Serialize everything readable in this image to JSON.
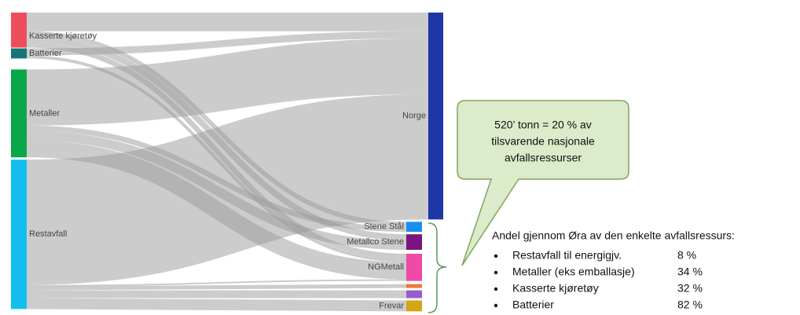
{
  "chart_data": {
    "type": "sankey",
    "nodes": [
      {
        "label": "Kasserte kjøretøy",
        "color": "#ee4d5e"
      },
      {
        "label": "Batterier",
        "color": "#13757a"
      },
      {
        "label": "Metaller",
        "color": "#0aa64a"
      },
      {
        "label": "Restavfall",
        "color": "#12bfec"
      },
      {
        "label": "Norge",
        "color": "#1f36a6"
      },
      {
        "label": "Stene Stål",
        "color": "#1a8fef"
      },
      {
        "label": "Metallco Stene",
        "color": "#7a1480"
      },
      {
        "label": "NGMetall",
        "color": "#ef4aa6"
      },
      {
        "label": null,
        "color": "#ef7a3a"
      },
      {
        "label": null,
        "color": "#9a5cc8"
      },
      {
        "label": "Frevar",
        "color": "#d4a514"
      }
    ],
    "links": [
      {
        "source": 0,
        "target": 4,
        "value": 24
      },
      {
        "source": 0,
        "target": 5,
        "value": 6
      },
      {
        "source": 0,
        "target": 6,
        "value": 8
      },
      {
        "source": 0,
        "target": 7,
        "value": 7
      },
      {
        "source": 1,
        "target": 4,
        "value": 9
      },
      {
        "source": 1,
        "target": 7,
        "value": 4
      },
      {
        "source": 2,
        "target": 4,
        "value": 72
      },
      {
        "source": 2,
        "target": 5,
        "value": 7
      },
      {
        "source": 2,
        "target": 6,
        "value": 12
      },
      {
        "source": 2,
        "target": 7,
        "value": 22
      },
      {
        "source": 3,
        "target": 4,
        "value": 161
      },
      {
        "source": 3,
        "target": 7,
        "value": 2
      },
      {
        "source": 3,
        "target": 8,
        "value": 5
      },
      {
        "source": 3,
        "target": 9,
        "value": 10
      },
      {
        "source": 3,
        "target": 10,
        "value": 14
      }
    ]
  },
  "callout": {
    "lines": [
      "520’ tonn = 20 % av",
      "tilsvarende nasjonale",
      "avfallsressurser"
    ]
  },
  "annotation": {
    "heading": "Andel gjennom Øra av den enkelte avfallsressurs:",
    "items": [
      {
        "name": "Restavfall til energigjv.",
        "value": "8 %"
      },
      {
        "name": "Metaller (eks emballasje)",
        "value": "34 %"
      },
      {
        "name": "Kasserte kjøretøy",
        "value": "32 %"
      },
      {
        "name": "Batterier",
        "value": "82 %"
      }
    ]
  }
}
